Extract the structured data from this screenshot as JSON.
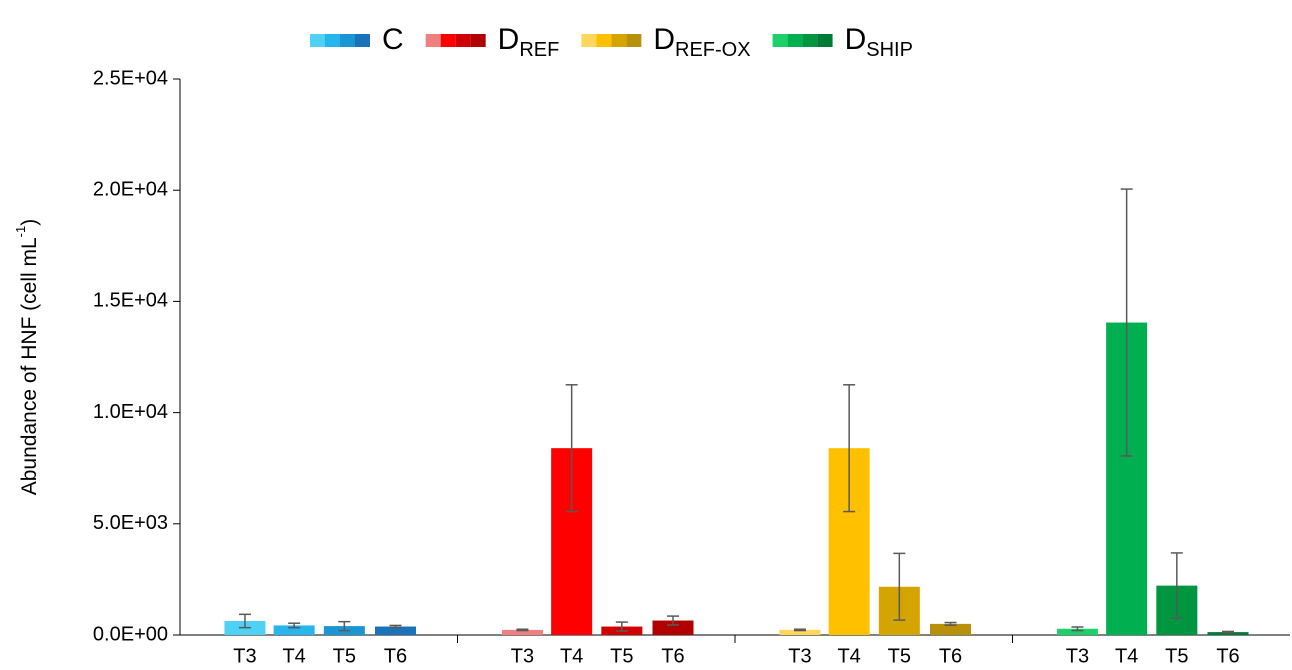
{
  "chart_data": {
    "type": "bar",
    "y_label": {
      "text": "Abundance of HNF (cell mL",
      "superscript": "-1",
      "suffix": ")"
    },
    "categories": [
      "T3",
      "T4",
      "T5",
      "T6"
    ],
    "ylim": [
      0,
      25000
    ],
    "yticks": [
      {
        "value": 0,
        "label": "0.0E+00"
      },
      {
        "value": 5000,
        "label": "5.0E+03"
      },
      {
        "value": 10000,
        "label": "1.0E+04"
      },
      {
        "value": 15000,
        "label": "1.5E+04"
      },
      {
        "value": 20000,
        "label": "2.0E+04"
      },
      {
        "value": 25000,
        "label": "2.5E+04"
      }
    ],
    "error_color": "#595959",
    "series": [
      {
        "name": "C",
        "colors": [
          "#4fd0f5",
          "#26b5ec",
          "#1b96d4",
          "#1a73ba"
        ],
        "values": [
          630,
          430,
          400,
          380
        ],
        "errors": [
          300,
          100,
          200,
          50
        ]
      },
      {
        "name": "D",
        "subscript": "REF",
        "colors": [
          "#f08080",
          "#ff0000",
          "#d00000",
          "#b00000"
        ],
        "values": [
          230,
          8400,
          380,
          650
        ],
        "errors": [
          30,
          2850,
          200,
          200
        ]
      },
      {
        "name": "D",
        "subscript": "REF-OX",
        "colors": [
          "#ffd75a",
          "#ffc000",
          "#d4a500",
          "#b8900a"
        ],
        "values": [
          230,
          8400,
          2170,
          500
        ],
        "errors": [
          30,
          2850,
          1500,
          60
        ]
      },
      {
        "name": "D",
        "subscript": "SHIP",
        "colors": [
          "#1dd16a",
          "#00b050",
          "#009640",
          "#007a35"
        ],
        "values": [
          280,
          14050,
          2220,
          130
        ],
        "errors": [
          80,
          6000,
          1470,
          30
        ]
      }
    ]
  }
}
